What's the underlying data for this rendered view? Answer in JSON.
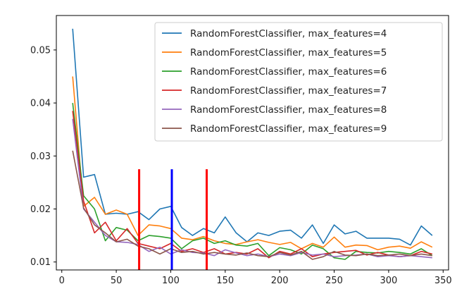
{
  "chart_data": {
    "type": "line",
    "title": "",
    "xlabel": "",
    "ylabel": "",
    "xlim": [
      -5,
      355
    ],
    "ylim": [
      0.0085,
      0.0565
    ],
    "xticks": [
      0,
      50,
      100,
      150,
      200,
      250,
      300,
      350
    ],
    "yticks": [
      0.01,
      0.02,
      0.03,
      0.04,
      0.05
    ],
    "x_tick_labels": [
      "0",
      "50",
      "100",
      "150",
      "200",
      "250",
      "300",
      "350"
    ],
    "y_tick_labels": [
      "0.01",
      "0.02",
      "0.03",
      "0.04",
      "0.05"
    ],
    "grid": false,
    "legend_position": "top-right",
    "x": [
      10,
      20,
      30,
      40,
      50,
      60,
      70,
      80,
      90,
      100,
      110,
      120,
      130,
      140,
      150,
      160,
      170,
      180,
      190,
      200,
      210,
      220,
      230,
      240,
      250,
      260,
      270,
      280,
      290,
      300,
      310,
      320,
      330,
      340
    ],
    "series": [
      {
        "name": "RandomForestClassifier, max_features=4",
        "color": "#1f77b4",
        "values": [
          0.054,
          0.026,
          0.0265,
          0.019,
          0.0192,
          0.019,
          0.0195,
          0.018,
          0.02,
          0.0205,
          0.0165,
          0.015,
          0.0163,
          0.0155,
          0.0185,
          0.0155,
          0.0138,
          0.0155,
          0.015,
          0.0158,
          0.016,
          0.0145,
          0.017,
          0.0135,
          0.017,
          0.0153,
          0.0158,
          0.0145,
          0.0145,
          0.0145,
          0.0143,
          0.0132,
          0.0168,
          0.015
        ]
      },
      {
        "name": "RandomForestClassifier, max_features=5",
        "color": "#ff7f0e",
        "values": [
          0.045,
          0.0205,
          0.0222,
          0.019,
          0.0198,
          0.019,
          0.015,
          0.017,
          0.0168,
          0.0163,
          0.0145,
          0.0142,
          0.0148,
          0.014,
          0.0135,
          0.0133,
          0.0138,
          0.0142,
          0.0137,
          0.0133,
          0.0137,
          0.0125,
          0.0135,
          0.0128,
          0.0147,
          0.0128,
          0.0132,
          0.0131,
          0.0123,
          0.0128,
          0.013,
          0.0126,
          0.0138,
          0.0128
        ]
      },
      {
        "name": "RandomForestClassifier, max_features=6",
        "color": "#2ca02c",
        "values": [
          0.04,
          0.0225,
          0.02,
          0.014,
          0.0165,
          0.016,
          0.014,
          0.015,
          0.0148,
          0.0145,
          0.0125,
          0.014,
          0.0145,
          0.0135,
          0.014,
          0.0132,
          0.013,
          0.0135,
          0.0112,
          0.0127,
          0.0123,
          0.0115,
          0.0132,
          0.0125,
          0.0108,
          0.0105,
          0.012,
          0.0118,
          0.0117,
          0.012,
          0.0118,
          0.0115,
          0.0125,
          0.0112
        ]
      },
      {
        "name": "RandomForestClassifier, max_features=7",
        "color": "#d62728",
        "values": [
          0.0385,
          0.0215,
          0.0155,
          0.0175,
          0.014,
          0.0163,
          0.0135,
          0.013,
          0.0125,
          0.0135,
          0.012,
          0.0125,
          0.0118,
          0.0125,
          0.0115,
          0.0118,
          0.0115,
          0.0125,
          0.0108,
          0.012,
          0.0115,
          0.0125,
          0.011,
          0.0115,
          0.0118,
          0.012,
          0.0122,
          0.0113,
          0.0118,
          0.0113,
          0.011,
          0.0112,
          0.012,
          0.0115
        ]
      },
      {
        "name": "RandomForestClassifier, max_features=8",
        "color": "#9467bd",
        "values": [
          0.037,
          0.02,
          0.0175,
          0.015,
          0.0138,
          0.0137,
          0.0133,
          0.012,
          0.0128,
          0.0115,
          0.0123,
          0.0118,
          0.0117,
          0.0112,
          0.0123,
          0.0117,
          0.0112,
          0.0115,
          0.011,
          0.0115,
          0.0112,
          0.0118,
          0.0113,
          0.0115,
          0.011,
          0.0112,
          0.0113,
          0.0115,
          0.011,
          0.0112,
          0.011,
          0.0112,
          0.011,
          0.0108
        ]
      },
      {
        "name": "RandomForestClassifier, max_features=9",
        "color": "#8c564b",
        "values": [
          0.031,
          0.0202,
          0.017,
          0.0155,
          0.0138,
          0.0143,
          0.013,
          0.0125,
          0.0115,
          0.0125,
          0.0118,
          0.012,
          0.0115,
          0.0118,
          0.0115,
          0.0113,
          0.0117,
          0.0112,
          0.011,
          0.0118,
          0.0113,
          0.012,
          0.0105,
          0.011,
          0.012,
          0.0113,
          0.0112,
          0.0115,
          0.0112,
          0.0113,
          0.0115,
          0.0112,
          0.0115,
          0.0112
        ]
      }
    ],
    "vertical_lines": [
      {
        "x": 71,
        "color": "#ff0000"
      },
      {
        "x": 101,
        "color": "#0000ff"
      },
      {
        "x": 133,
        "color": "#ff0000"
      }
    ],
    "vertical_line_top": 0.0275
  }
}
